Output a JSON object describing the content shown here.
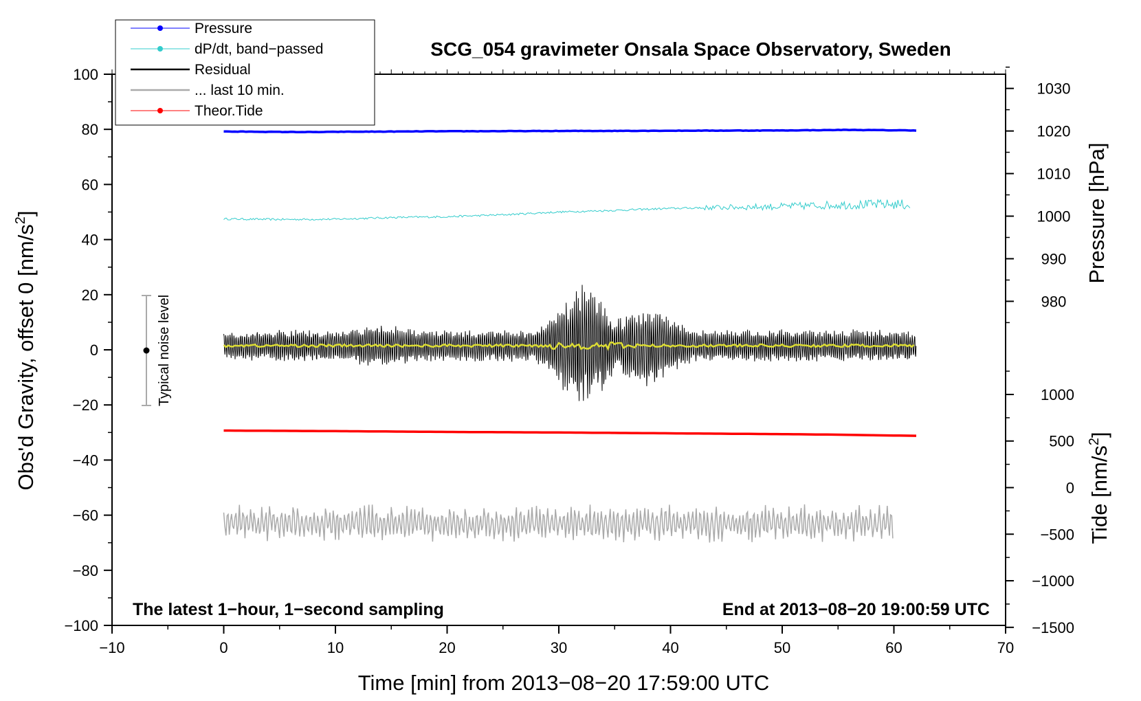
{
  "chart_data": {
    "type": "line",
    "title": "SCG_054 gravimeter Onsala Space Observatory, Sweden",
    "xlabel": "Time [min] from 2013−08−20 17:59:00 UTC",
    "ylabel_left_main": "Obs'd Gravity, offset 0 [nm/s",
    "ylabel_left_sup": "2",
    "ylabel_left_end": "]",
    "ylabel_pressure": "Pressure [hPa]",
    "ylabel_tide_main": "Tide [nm/s",
    "ylabel_tide_sup": "2",
    "ylabel_tide_end": "]",
    "xlim": [
      -10,
      70
    ],
    "ylim": [
      -100,
      100
    ],
    "x_ticks": [
      "−10",
      "0",
      "10",
      "20",
      "30",
      "40",
      "50",
      "60",
      "70"
    ],
    "y_ticks": [
      "100",
      "80",
      "60",
      "40",
      "20",
      "0",
      "−20",
      "−40",
      "−60",
      "−80",
      "−100"
    ],
    "pressure_ticks": [
      "1030",
      "1020",
      "1010",
      "1000",
      "990",
      "980"
    ],
    "tide_ticks": [
      "1000",
      "500",
      "0",
      "−500",
      "−1000",
      "−1500"
    ],
    "annotation_left": "The latest 1−hour, 1−second sampling",
    "annotation_right": "End at 2013−08−20 19:00:59 UTC",
    "noise_bar_label": "Typical noise level",
    "noise_bar": {
      "x": -7,
      "center": 0,
      "half_range": 20
    },
    "legend": [
      {
        "label": "Pressure",
        "color": "#0000ff",
        "marker": true
      },
      {
        "label": "dP/dt, band−passed",
        "color": "#33cccc",
        "marker": true
      },
      {
        "label": "Residual",
        "color": "#000000",
        "marker": false
      },
      {
        "label": "... last 10 min.",
        "color": "#aaaaaa",
        "marker": false
      },
      {
        "label": "Theor.Tide",
        "color": "#ff0000",
        "marker": true
      }
    ],
    "series": [
      {
        "name": "Pressure",
        "color": "#0000ff",
        "x": [
          0,
          8,
          10,
          20,
          30,
          40,
          50,
          56,
          62
        ],
        "y": [
          79.2,
          79.0,
          79.1,
          79.3,
          79.4,
          79.5,
          79.6,
          79.8,
          79.6
        ]
      },
      {
        "name": "dP/dt, band-passed",
        "color": "#33cccc",
        "x": [
          0,
          5,
          10,
          15,
          20,
          25,
          30,
          35,
          40,
          45,
          50,
          55,
          60,
          61.5
        ],
        "y": [
          47.5,
          47.3,
          47.4,
          48.0,
          48.3,
          49.0,
          50.0,
          50.6,
          51.3,
          51.7,
          52.0,
          52.6,
          52.8,
          52.6
        ]
      },
      {
        "name": "Residual",
        "color": "#000000",
        "x": [
          0,
          62
        ],
        "y": [
          1.5,
          1.5
        ],
        "envelope_x": [
          0,
          5,
          10,
          14,
          18,
          28,
          30,
          32,
          34,
          35,
          37,
          38,
          40,
          42,
          45,
          50,
          55,
          60,
          62
        ],
        "envelope_amp": [
          5,
          6,
          6,
          8,
          6,
          6,
          15,
          23,
          18,
          9,
          14,
          17,
          10,
          6,
          6,
          6,
          6,
          6,
          5
        ]
      },
      {
        "name": "Residual smoothed",
        "color": "#dddd33",
        "x": [
          0,
          62
        ],
        "y": [
          1.5,
          1.5
        ]
      },
      {
        "name": "last 10 min.",
        "color": "#aaaaaa",
        "x": [
          0,
          10,
          20,
          30,
          40,
          50,
          60
        ],
        "y": [
          -63,
          -63,
          -63,
          -63,
          -63,
          -63,
          -63
        ],
        "amplitude": 7
      },
      {
        "name": "Theor.Tide",
        "color": "#ff0000",
        "x": [
          0,
          10,
          20,
          30,
          40,
          50,
          55,
          60,
          62
        ],
        "y": [
          -29.3,
          -29.5,
          -29.8,
          -30.0,
          -30.3,
          -30.6,
          -30.8,
          -31.1,
          -31.2
        ]
      }
    ]
  }
}
